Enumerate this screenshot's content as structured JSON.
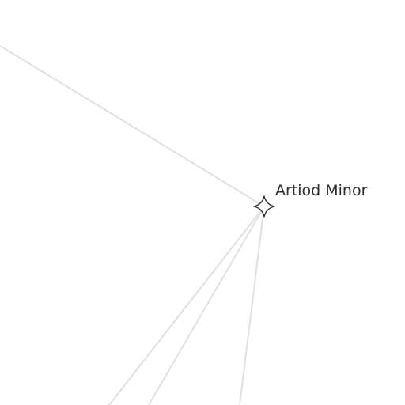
{
  "node": {
    "label": "Artiod Minor",
    "icon": "four-point-star-icon"
  },
  "colors": {
    "background": "#ffffff",
    "link_line": "#e0e0e0",
    "marker_outline": "#2e2e2e",
    "label_text": "#2e2e2e"
  }
}
